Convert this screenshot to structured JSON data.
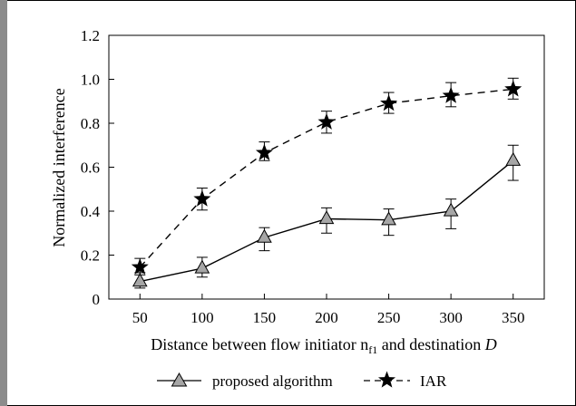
{
  "chart_data": {
    "type": "line",
    "x": [
      50,
      100,
      150,
      200,
      250,
      300,
      350
    ],
    "xlabel_main": "Distance between flow initiator n",
    "xlabel_sub": "f1",
    "xlabel_mid": " and destination ",
    "xlabel_end": "D",
    "ylabel": "Normalized interference",
    "ylim": [
      0,
      1.2
    ],
    "yticks": [
      "0",
      "0.2",
      "0.4",
      "0.6",
      "0.8",
      "1.0",
      "1.2"
    ],
    "xticks": [
      "50",
      "100",
      "150",
      "200",
      "250",
      "300",
      "350"
    ],
    "legend_position": "bottom",
    "grid": false,
    "series": [
      {
        "name": "proposed algorithm",
        "marker": "triangle",
        "line_style": "solid",
        "marker_color": "#a6a6a6",
        "values": [
          0.08,
          0.14,
          0.28,
          0.365,
          0.36,
          0.4,
          0.63
        ],
        "err_low": [
          0.05,
          0.1,
          0.22,
          0.3,
          0.29,
          0.32,
          0.54
        ],
        "err_high": [
          0.12,
          0.19,
          0.325,
          0.415,
          0.41,
          0.455,
          0.7
        ]
      },
      {
        "name": "IAR",
        "marker": "star",
        "line_style": "dashed",
        "marker_color": "#000000",
        "values": [
          0.145,
          0.455,
          0.665,
          0.805,
          0.89,
          0.925,
          0.955
        ],
        "err_low": [
          0.11,
          0.405,
          0.63,
          0.755,
          0.845,
          0.875,
          0.91
        ],
        "err_high": [
          0.185,
          0.505,
          0.715,
          0.855,
          0.94,
          0.985,
          1.005
        ]
      }
    ]
  }
}
